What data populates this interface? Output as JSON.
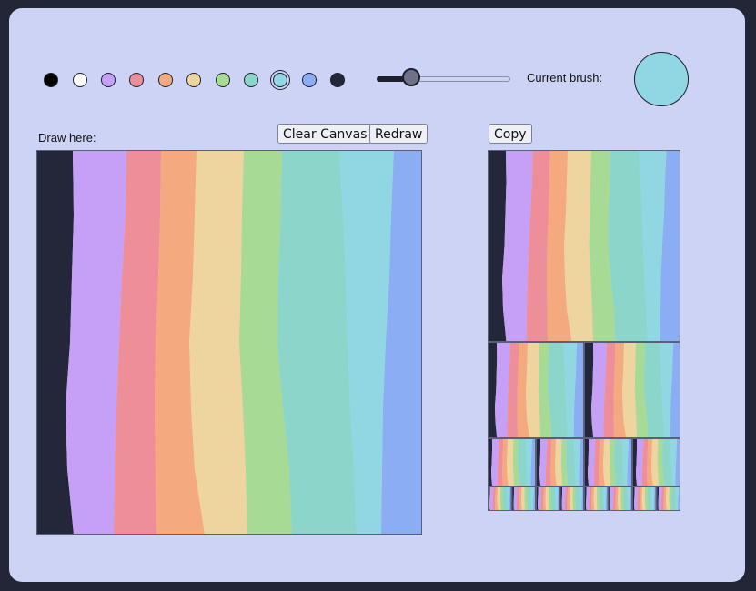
{
  "palette": {
    "colors": [
      "#000000",
      "#ffffff",
      "#c6a0f6",
      "#ee8e98",
      "#f5a97f",
      "#eed49f",
      "#a6da95",
      "#8bd5ca",
      "#91d7e3",
      "#8aadf4",
      "#24273a"
    ],
    "selected_index": 8
  },
  "brush_size": {
    "value": 0.26
  },
  "current_brush": {
    "label": "Current brush:",
    "color": "#91d7e3"
  },
  "canvas": {
    "label": "Draw here:",
    "clear_label": "Clear Canvas",
    "redraw_label": "Redraw",
    "stripe_colors": [
      "#24273a",
      "#c6a0f6",
      "#ee8e98",
      "#f5a97f",
      "#eed49f",
      "#a6da95",
      "#8bd5ca",
      "#91d7e3",
      "#8aadf4"
    ]
  },
  "copy": {
    "label": "Copy"
  }
}
